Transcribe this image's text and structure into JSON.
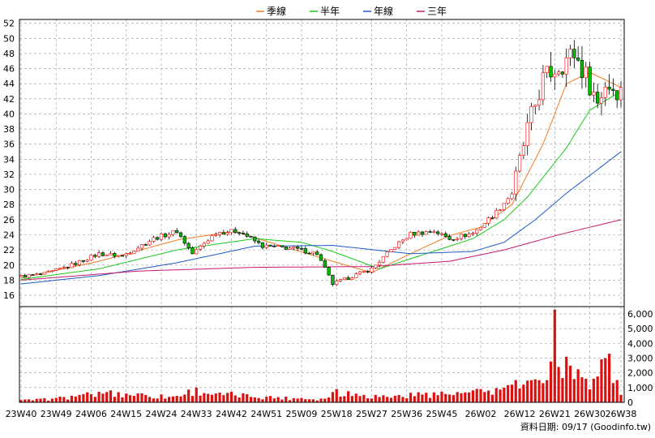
{
  "chart_data": {
    "type": "candlestick+volume",
    "legend": [
      {
        "name": "季線",
        "color": "#F07A20"
      },
      {
        "name": "半年",
        "color": "#19C819"
      },
      {
        "name": "年線",
        "color": "#1E5AC8"
      },
      {
        "name": "三年",
        "color": "#C8186E"
      }
    ],
    "price_axis": {
      "ylim": [
        14.5,
        52.5
      ],
      "ticks": [
        16,
        18,
        20,
        22,
        24,
        26,
        28,
        30,
        32,
        34,
        36,
        38,
        40,
        42,
        44,
        46,
        48,
        50,
        52
      ]
    },
    "volume_axis": {
      "ylim": [
        0,
        6500
      ],
      "ticks": [
        "0",
        "1,000",
        "2,000",
        "3,000",
        "4,000",
        "5,000",
        "6,000"
      ],
      "tick_values": [
        0,
        1000,
        2000,
        3000,
        4000,
        5000,
        6000
      ]
    },
    "x_ticks": [
      "23W40",
      "23W49",
      "24W06",
      "24W15",
      "24W24",
      "24W33",
      "24W42",
      "24W51",
      "25W09",
      "25W18",
      "25W27",
      "25W36",
      "25W45",
      "26W02",
      "26W12",
      "26W21",
      "26W30",
      "26W38"
    ],
    "x_tick_index": [
      0,
      9,
      18,
      27,
      36,
      45,
      54,
      63,
      72,
      81,
      90,
      99,
      108,
      118,
      128,
      137,
      146,
      154
    ],
    "n_weeks": 155,
    "close_keypoints": [
      [
        0,
        18.5
      ],
      [
        6,
        18.8
      ],
      [
        12,
        19.8
      ],
      [
        20,
        21.5
      ],
      [
        26,
        21.2
      ],
      [
        34,
        23.5
      ],
      [
        40,
        24.5
      ],
      [
        44,
        21.5
      ],
      [
        50,
        24.3
      ],
      [
        56,
        24.5
      ],
      [
        62,
        22.5
      ],
      [
        70,
        22.2
      ],
      [
        76,
        21.5
      ],
      [
        80,
        17.5
      ],
      [
        86,
        18.7
      ],
      [
        90,
        19.5
      ],
      [
        96,
        22.5
      ],
      [
        100,
        24.1
      ],
      [
        106,
        24.5
      ],
      [
        110,
        23.5
      ],
      [
        116,
        24.2
      ],
      [
        122,
        27.0
      ],
      [
        126,
        29.5
      ],
      [
        130,
        38.0
      ],
      [
        134,
        44.5
      ],
      [
        138,
        46.5
      ],
      [
        142,
        48.0
      ],
      [
        146,
        44.0
      ],
      [
        148,
        41.5
      ],
      [
        150,
        44.0
      ],
      [
        154,
        43.0
      ]
    ],
    "series_ma": {
      "季線": [
        [
          0,
          18.3
        ],
        [
          20,
          20.5
        ],
        [
          40,
          23.3
        ],
        [
          55,
          24.5
        ],
        [
          62,
          23.3
        ],
        [
          80,
          20.5
        ],
        [
          90,
          19.0
        ],
        [
          100,
          21.5
        ],
        [
          110,
          23.9
        ],
        [
          118,
          25.0
        ],
        [
          126,
          28.0
        ],
        [
          134,
          36.0
        ],
        [
          140,
          44.0
        ],
        [
          146,
          45.5
        ],
        [
          154,
          43.5
        ]
      ],
      "半年": [
        [
          0,
          18.1
        ],
        [
          20,
          19.5
        ],
        [
          40,
          22.0
        ],
        [
          60,
          23.5
        ],
        [
          72,
          23.0
        ],
        [
          80,
          21.8
        ],
        [
          92,
          19.5
        ],
        [
          104,
          21.5
        ],
        [
          116,
          23.5
        ],
        [
          124,
          26.0
        ],
        [
          130,
          29.0
        ],
        [
          140,
          35.5
        ],
        [
          146,
          40.5
        ],
        [
          154,
          43.0
        ]
      ],
      "年線": [
        [
          0,
          17.5
        ],
        [
          20,
          18.6
        ],
        [
          40,
          20.3
        ],
        [
          60,
          22.5
        ],
        [
          80,
          22.6
        ],
        [
          100,
          21.5
        ],
        [
          116,
          21.8
        ],
        [
          124,
          23.0
        ],
        [
          132,
          26.0
        ],
        [
          140,
          29.5
        ],
        [
          154,
          35.0
        ]
      ],
      "三年": [
        [
          0,
          18.0
        ],
        [
          30,
          19.2
        ],
        [
          60,
          19.7
        ],
        [
          90,
          19.8
        ],
        [
          110,
          20.5
        ],
        [
          124,
          22.0
        ],
        [
          138,
          24.0
        ],
        [
          154,
          26.0
        ]
      ]
    },
    "volume_spikes": [
      [
        0,
        150
      ],
      [
        8,
        250
      ],
      [
        15,
        500
      ],
      [
        22,
        700
      ],
      [
        30,
        600
      ],
      [
        39,
        400
      ],
      [
        45,
        1000
      ],
      [
        50,
        600
      ],
      [
        58,
        550
      ],
      [
        66,
        350
      ],
      [
        72,
        300
      ],
      [
        78,
        250
      ],
      [
        81,
        900
      ],
      [
        88,
        500
      ],
      [
        96,
        450
      ],
      [
        104,
        650
      ],
      [
        112,
        700
      ],
      [
        120,
        800
      ],
      [
        126,
        1200
      ],
      [
        131,
        1500
      ],
      [
        134,
        1300
      ],
      [
        137,
        6300
      ],
      [
        138,
        2400
      ],
      [
        140,
        3100
      ],
      [
        144,
        1700
      ],
      [
        147,
        1600
      ],
      [
        150,
        3000
      ],
      [
        151,
        3300
      ],
      [
        154,
        500
      ]
    ]
  },
  "footer": {
    "date_label": "資料日期: 09/17",
    "source": "(Goodinfo.tw)"
  },
  "colors": {
    "up": "#FF0000",
    "down": "#00C000",
    "volume": "#DD1010",
    "grid": "#999999"
  }
}
